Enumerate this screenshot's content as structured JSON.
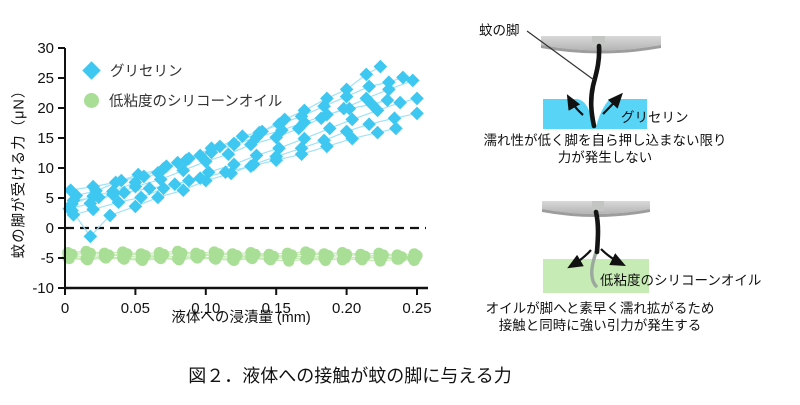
{
  "figure": {
    "caption": "図２．液体への接触が蚊の脚に与える力"
  },
  "axes": {
    "x_label": "液体への浸漬量 (mm)",
    "y_label": "蚊の脚が受ける力（μN）"
  },
  "colors": {
    "glycerin_marker": "#3EC8F1",
    "glycerin_line": "#9FE2F8",
    "silicone_marker": "#A8DE95",
    "silicone_line": "#C6EBB5",
    "glycerin_liquid": "#58D4F7",
    "silicone_liquid": "#C6EBB4",
    "axis": "#111111",
    "support_bar": "#C9C9C9"
  },
  "chart_data": {
    "type": "scatter",
    "title": "",
    "xlabel": "液体への浸漬量 (mm)",
    "ylabel": "蚊の脚が受ける力（μN）",
    "xlim": [
      0,
      0.25
    ],
    "ylim": [
      -10,
      30
    ],
    "xticks": [
      0,
      0.05,
      0.1,
      0.15,
      0.2,
      0.25
    ],
    "xtick_labels": [
      "0",
      "0.05",
      "0.10",
      "0.15",
      "0.20",
      "0.25"
    ],
    "yticks": [
      30,
      25,
      20,
      15,
      10,
      5,
      0,
      -5,
      -10
    ],
    "zero_line_dashed": true,
    "grid": false,
    "legend_position": "top-left-inside",
    "series": [
      {
        "name": "グリセリン",
        "marker": "diamond",
        "color": "#3EC8F1",
        "line_color": "#9FE2F8",
        "traces": [
          [
            [
              0.005,
              4.0
            ],
            [
              0.02,
              5.3
            ],
            [
              0.034,
              6.1
            ],
            [
              0.05,
              7.6
            ],
            [
              0.066,
              9.2
            ],
            [
              0.08,
              10.9
            ],
            [
              0.096,
              12.1
            ],
            [
              0.11,
              13.6
            ],
            [
              0.126,
              15.3
            ],
            [
              0.14,
              16.1
            ],
            [
              0.156,
              18.1
            ],
            [
              0.17,
              19.6
            ],
            [
              0.186,
              21.6
            ],
            [
              0.2,
              23.1
            ],
            [
              0.214,
              25.6
            ],
            [
              0.224,
              26.9
            ]
          ],
          [
            [
              0.008,
              5.4
            ],
            [
              0.022,
              6.2
            ],
            [
              0.04,
              7.9
            ],
            [
              0.056,
              8.6
            ],
            [
              0.072,
              10.3
            ],
            [
              0.088,
              11.6
            ],
            [
              0.104,
              13.3
            ],
            [
              0.12,
              14.1
            ],
            [
              0.138,
              15.9
            ],
            [
              0.152,
              17.3
            ],
            [
              0.168,
              18.6
            ],
            [
              0.184,
              20.3
            ],
            [
              0.2,
              21.9
            ],
            [
              0.216,
              23.6
            ],
            [
              0.23,
              24.3
            ],
            [
              0.24,
              25.1
            ]
          ],
          [
            [
              0.003,
              3.2
            ],
            [
              0.018,
              4.1
            ],
            [
              0.034,
              5.6
            ],
            [
              0.05,
              6.9
            ],
            [
              0.068,
              8.1
            ],
            [
              0.084,
              9.6
            ],
            [
              0.1,
              11.1
            ],
            [
              0.116,
              12.3
            ],
            [
              0.132,
              13.9
            ],
            [
              0.15,
              15.1
            ],
            [
              0.166,
              16.6
            ],
            [
              0.182,
              18.3
            ],
            [
              0.198,
              19.9
            ],
            [
              0.214,
              21.6
            ],
            [
              0.23,
              23.1
            ],
            [
              0.247,
              24.6
            ]
          ],
          [
            [
              0.006,
              2.2
            ],
            [
              0.02,
              3.1
            ],
            [
              0.038,
              4.3
            ],
            [
              0.054,
              5.1
            ],
            [
              0.07,
              6.6
            ],
            [
              0.088,
              7.9
            ],
            [
              0.102,
              9.3
            ],
            [
              0.12,
              10.6
            ],
            [
              0.136,
              12.1
            ],
            [
              0.152,
              13.3
            ],
            [
              0.17,
              14.9
            ],
            [
              0.188,
              16.6
            ],
            [
              0.204,
              18.1
            ],
            [
              0.222,
              19.6
            ],
            [
              0.238,
              20.9
            ],
            [
              0.25,
              21.6
            ]
          ],
          [
            [
              0.004,
              6.3
            ],
            [
              0.02,
              6.9
            ],
            [
              0.036,
              7.6
            ],
            [
              0.052,
              8.9
            ],
            [
              0.07,
              9.9
            ],
            [
              0.086,
              11.3
            ],
            [
              0.104,
              12.6
            ],
            [
              0.12,
              13.9
            ],
            [
              0.136,
              15.1
            ],
            [
              0.154,
              16.3
            ],
            [
              0.17,
              17.6
            ],
            [
              0.186,
              18.9
            ],
            [
              0.202,
              19.9
            ],
            [
              0.218,
              20.6
            ],
            [
              0.229,
              21.3
            ]
          ],
          [
            [
              0.005,
              2.9
            ],
            [
              0.018,
              -1.4
            ],
            [
              0.032,
              2.1
            ],
            [
              0.05,
              3.6
            ],
            [
              0.066,
              5.1
            ],
            [
              0.084,
              6.3
            ],
            [
              0.1,
              7.9
            ],
            [
              0.118,
              9.1
            ],
            [
              0.134,
              10.6
            ],
            [
              0.15,
              11.9
            ],
            [
              0.168,
              13.3
            ],
            [
              0.184,
              14.6
            ],
            [
              0.2,
              16.1
            ],
            [
              0.216,
              17.3
            ],
            [
              0.234,
              18.3
            ],
            [
              0.25,
              19.1
            ]
          ],
          [
            [
              0.006,
              4.6
            ],
            [
              0.024,
              5.1
            ],
            [
              0.042,
              5.9
            ],
            [
              0.06,
              6.6
            ],
            [
              0.078,
              7.3
            ],
            [
              0.096,
              8.3
            ],
            [
              0.114,
              9.3
            ],
            [
              0.132,
              10.3
            ],
            [
              0.15,
              11.3
            ],
            [
              0.168,
              12.3
            ],
            [
              0.186,
              13.6
            ],
            [
              0.204,
              14.9
            ],
            [
              0.222,
              15.9
            ],
            [
              0.235,
              16.6
            ]
          ]
        ]
      },
      {
        "name": "低粘度のシリコーンオイル",
        "marker": "circle",
        "color": "#A8DE95",
        "line_color": "#C6EBB5",
        "traces": [
          [
            [
              0.002,
              -4.1
            ],
            [
              0.015,
              -3.9
            ],
            [
              0.028,
              -4.2
            ],
            [
              0.041,
              -4.0
            ],
            [
              0.054,
              -4.3
            ],
            [
              0.067,
              -4.1
            ],
            [
              0.08,
              -3.9
            ],
            [
              0.093,
              -4.2
            ],
            [
              0.106,
              -4.0
            ],
            [
              0.119,
              -4.3
            ],
            [
              0.132,
              -4.1
            ],
            [
              0.145,
              -4.4
            ],
            [
              0.158,
              -4.2
            ],
            [
              0.171,
              -4.0
            ],
            [
              0.184,
              -4.3
            ],
            [
              0.197,
              -4.1
            ],
            [
              0.21,
              -4.4
            ],
            [
              0.223,
              -4.2
            ],
            [
              0.236,
              -4.5
            ],
            [
              0.248,
              -4.3
            ]
          ],
          [
            [
              0.004,
              -4.6
            ],
            [
              0.017,
              -4.8
            ],
            [
              0.03,
              -4.5
            ],
            [
              0.043,
              -4.7
            ],
            [
              0.056,
              -4.9
            ],
            [
              0.069,
              -4.6
            ],
            [
              0.082,
              -4.8
            ],
            [
              0.095,
              -4.5
            ],
            [
              0.108,
              -4.7
            ],
            [
              0.121,
              -4.9
            ],
            [
              0.134,
              -4.6
            ],
            [
              0.147,
              -4.8
            ],
            [
              0.16,
              -4.6
            ],
            [
              0.173,
              -4.9
            ],
            [
              0.186,
              -4.7
            ],
            [
              0.199,
              -5.0
            ],
            [
              0.212,
              -4.8
            ],
            [
              0.225,
              -5.0
            ],
            [
              0.238,
              -4.8
            ],
            [
              0.249,
              -5.0
            ]
          ],
          [
            [
              0.003,
              -5.1
            ],
            [
              0.016,
              -5.3
            ],
            [
              0.029,
              -5.0
            ],
            [
              0.042,
              -5.2
            ],
            [
              0.055,
              -5.4
            ],
            [
              0.068,
              -5.1
            ],
            [
              0.081,
              -5.3
            ],
            [
              0.094,
              -5.0
            ],
            [
              0.107,
              -5.2
            ],
            [
              0.12,
              -5.4
            ],
            [
              0.133,
              -5.1
            ],
            [
              0.146,
              -5.3
            ],
            [
              0.159,
              -5.5
            ],
            [
              0.172,
              -5.2
            ],
            [
              0.185,
              -5.4
            ],
            [
              0.198,
              -5.1
            ],
            [
              0.211,
              -5.3
            ],
            [
              0.224,
              -5.5
            ],
            [
              0.237,
              -5.2
            ],
            [
              0.248,
              -5.4
            ]
          ],
          [
            [
              0.005,
              -4.4
            ],
            [
              0.018,
              -4.2
            ],
            [
              0.031,
              -4.5
            ],
            [
              0.044,
              -4.3
            ],
            [
              0.057,
              -4.6
            ],
            [
              0.07,
              -4.4
            ],
            [
              0.083,
              -4.2
            ],
            [
              0.096,
              -4.5
            ],
            [
              0.109,
              -4.3
            ],
            [
              0.122,
              -4.6
            ],
            [
              0.135,
              -4.4
            ],
            [
              0.148,
              -4.7
            ],
            [
              0.161,
              -4.5
            ],
            [
              0.174,
              -4.3
            ],
            [
              0.187,
              -4.6
            ],
            [
              0.2,
              -4.4
            ],
            [
              0.213,
              -4.7
            ],
            [
              0.226,
              -4.5
            ],
            [
              0.239,
              -4.8
            ],
            [
              0.25,
              -4.6
            ]
          ],
          [
            [
              0.002,
              -4.9
            ],
            [
              0.015,
              -5.1
            ],
            [
              0.028,
              -4.8
            ],
            [
              0.041,
              -5.0
            ],
            [
              0.054,
              -5.2
            ],
            [
              0.067,
              -4.9
            ],
            [
              0.08,
              -5.1
            ],
            [
              0.093,
              -4.8
            ],
            [
              0.106,
              -5.0
            ],
            [
              0.119,
              -5.2
            ],
            [
              0.132,
              -4.9
            ],
            [
              0.145,
              -5.1
            ],
            [
              0.158,
              -4.9
            ],
            [
              0.171,
              -5.2
            ],
            [
              0.184,
              -5.0
            ],
            [
              0.197,
              -5.3
            ],
            [
              0.21,
              -5.1
            ],
            [
              0.223,
              -4.9
            ],
            [
              0.236,
              -5.2
            ],
            [
              0.247,
              -5.0
            ]
          ]
        ]
      }
    ]
  },
  "illustrations": {
    "glycerin": {
      "pointer_label": "蚊の脚",
      "liquid_label": "グリセリン",
      "caption_line1": "濡れ性が低く脚を自ら押し込まない限り",
      "caption_line2": "力が発生しない",
      "liquid_color": "#58D4F7"
    },
    "silicone": {
      "liquid_label": "低粘度のシリコーンオイル",
      "caption_line1": "オイルが脚へと素早く濡れ拡がるため",
      "caption_line2": "接触と同時に強い引力が発生する",
      "liquid_color": "#C6EBB4"
    }
  }
}
